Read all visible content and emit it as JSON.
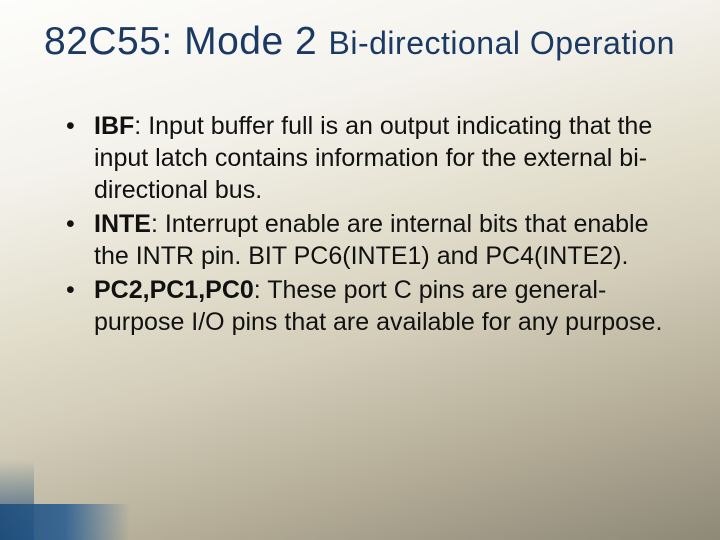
{
  "colors": {
    "title_color": "#1a3a63",
    "text_color": "#111111",
    "bg_gradient": [
      "#fdfdfb",
      "#f4f2ec",
      "#e3dfce",
      "#d3cdb9",
      "#b4ac96",
      "#8e8878"
    ],
    "accent_bar": "#1f4d7a"
  },
  "typography": {
    "title_font": "Impact",
    "title_main_size_pt": 29,
    "title_sub_size_pt": 24,
    "body_font": "Verdana",
    "body_size_pt": 19,
    "line_height": 1.28
  },
  "title": {
    "main": "82C55: Mode 2 ",
    "sub": "Bi-directional Operation"
  },
  "bullets": [
    {
      "term": "IBF",
      "sep": ": ",
      "desc": "Input buffer full is an output indicating that the input latch contains information for the external bi-directional bus."
    },
    {
      "term": "INTE",
      "sep": ": ",
      "desc": "Interrupt enable are internal bits that enable the INTR pin. BIT PC6(INTE1) and PC4(INTE2)."
    },
    {
      "term": "PC2,PC1,PC0",
      "sep": ": ",
      "desc": "These port C pins are general-purpose I/O pins that are available for any purpose."
    }
  ]
}
